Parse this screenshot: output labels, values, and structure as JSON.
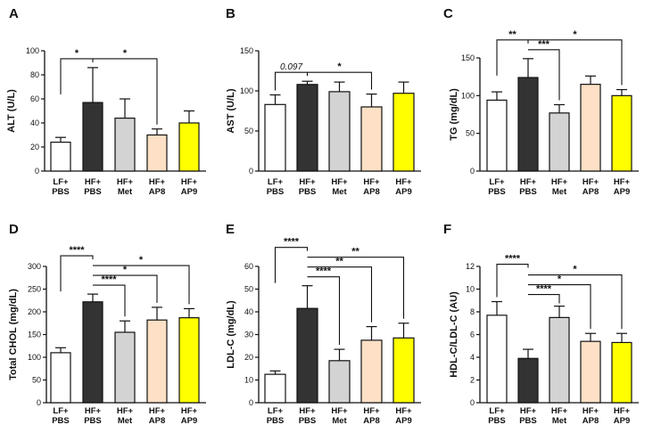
{
  "chart_data": [
    {
      "panel": "A",
      "type": "bar",
      "ylabel": "ALT (U/L)",
      "ylim": [
        0,
        100
      ],
      "yticks": [
        0,
        20,
        40,
        60,
        80,
        100
      ],
      "categories": [
        [
          "LF+",
          "PBS"
        ],
        [
          "HF+",
          "PBS"
        ],
        [
          "HF+",
          "Met"
        ],
        [
          "HF+",
          "AP8"
        ],
        [
          "HF+",
          "AP9"
        ]
      ],
      "colors": [
        "#ffffff",
        "#333333",
        "#d3d3d3",
        "#fde0c5",
        "#ffff00"
      ],
      "values": [
        24,
        57,
        44,
        30,
        40
      ],
      "errors": [
        4,
        29,
        16,
        5,
        10
      ],
      "comparisons": [
        {
          "from": 0,
          "to": 1,
          "label": "*",
          "level": 0
        },
        {
          "from": 1,
          "to": 3,
          "label": "*",
          "level": 0
        }
      ]
    },
    {
      "panel": "B",
      "type": "bar",
      "ylabel": "AST (U/L)",
      "ylim": [
        0,
        150
      ],
      "yticks": [
        0,
        50,
        100,
        150
      ],
      "categories": [
        [
          "LF+",
          "PBS"
        ],
        [
          "HF+",
          "PBS"
        ],
        [
          "HF+",
          "Met"
        ],
        [
          "HF+",
          "AP8"
        ],
        [
          "HF+",
          "AP9"
        ]
      ],
      "colors": [
        "#ffffff",
        "#333333",
        "#d3d3d3",
        "#fde0c5",
        "#ffff00"
      ],
      "values": [
        83,
        108,
        99,
        80,
        97
      ],
      "errors": [
        12,
        4,
        12,
        16,
        14
      ],
      "comparisons": [
        {
          "from": 0,
          "to": 1,
          "label": "0.097",
          "level": 0,
          "italic": true
        },
        {
          "from": 1,
          "to": 3,
          "label": "*",
          "level": 0
        }
      ]
    },
    {
      "panel": "C",
      "type": "bar",
      "ylabel": "TG (mg/dL)",
      "ylim": [
        0,
        150
      ],
      "yticks": [
        0,
        50,
        100,
        150
      ],
      "categories": [
        [
          "LF+",
          "PBS"
        ],
        [
          "HF+",
          "PBS"
        ],
        [
          "HF+",
          "Met"
        ],
        [
          "HF+",
          "AP8"
        ],
        [
          "HF+",
          "AP9"
        ]
      ],
      "colors": [
        "#ffffff",
        "#333333",
        "#d3d3d3",
        "#fde0c5",
        "#ffff00"
      ],
      "values": [
        94,
        124,
        77,
        115,
        100
      ],
      "errors": [
        11,
        25,
        11,
        11,
        8
      ],
      "comparisons": [
        {
          "from": 0,
          "to": 1,
          "label": "**",
          "level": 1
        },
        {
          "from": 1,
          "to": 2,
          "label": "***",
          "level": 0
        },
        {
          "from": 1,
          "to": 4,
          "label": "*",
          "level": 1
        }
      ]
    },
    {
      "panel": "D",
      "type": "bar",
      "ylabel": "Total CHOL (mg/dL)",
      "ylim": [
        0,
        300
      ],
      "yticks": [
        0,
        50,
        100,
        150,
        200,
        250,
        300
      ],
      "categories": [
        [
          "LF+",
          "PBS"
        ],
        [
          "HF+",
          "PBS"
        ],
        [
          "HF+",
          "Met"
        ],
        [
          "HF+",
          "AP8"
        ],
        [
          "HF+",
          "AP9"
        ]
      ],
      "colors": [
        "#ffffff",
        "#333333",
        "#d3d3d3",
        "#fde0c5",
        "#ffff00"
      ],
      "values": [
        110,
        222,
        155,
        182,
        187
      ],
      "errors": [
        11,
        17,
        25,
        28,
        20
      ],
      "comparisons": [
        {
          "from": 0,
          "to": 1,
          "label": "****",
          "level": 3
        },
        {
          "from": 1,
          "to": 2,
          "label": "****",
          "level": 0
        },
        {
          "from": 1,
          "to": 3,
          "label": "*",
          "level": 1
        },
        {
          "from": 1,
          "to": 4,
          "label": "*",
          "level": 2
        }
      ]
    },
    {
      "panel": "E",
      "type": "bar",
      "ylabel": "LDL-C (mg/dL)",
      "ylim": [
        0,
        60
      ],
      "yticks": [
        0,
        10,
        20,
        30,
        40,
        50,
        60
      ],
      "categories": [
        [
          "LF+",
          "PBS"
        ],
        [
          "HF+",
          "PBS"
        ],
        [
          "HF+",
          "Met"
        ],
        [
          "HF+",
          "AP8"
        ],
        [
          "HF+",
          "AP9"
        ]
      ],
      "colors": [
        "#ffffff",
        "#333333",
        "#d3d3d3",
        "#fde0c5",
        "#ffff00"
      ],
      "values": [
        12.5,
        41.5,
        18.5,
        27.5,
        28.5
      ],
      "errors": [
        1.5,
        10,
        5,
        6,
        6.5
      ],
      "comparisons": [
        {
          "from": 0,
          "to": 1,
          "label": "****",
          "level": 3
        },
        {
          "from": 1,
          "to": 2,
          "label": "****",
          "level": 0
        },
        {
          "from": 1,
          "to": 3,
          "label": "**",
          "level": 1
        },
        {
          "from": 1,
          "to": 4,
          "label": "**",
          "level": 2
        }
      ]
    },
    {
      "panel": "F",
      "type": "bar",
      "ylabel": "HDL-C/LDL-C (AU)",
      "ylim": [
        0,
        12
      ],
      "yticks": [
        0,
        2,
        4,
        6,
        8,
        10,
        12
      ],
      "categories": [
        [
          "LF+",
          "PBS"
        ],
        [
          "HF+",
          "PBS"
        ],
        [
          "HF+",
          "Met"
        ],
        [
          "HF+",
          "AP8"
        ],
        [
          "HF+",
          "AP9"
        ]
      ],
      "colors": [
        "#ffffff",
        "#333333",
        "#d3d3d3",
        "#fde0c5",
        "#ffff00"
      ],
      "values": [
        7.7,
        3.9,
        7.5,
        5.4,
        5.3
      ],
      "errors": [
        1.2,
        0.8,
        1.0,
        0.7,
        0.8
      ],
      "comparisons": [
        {
          "from": 0,
          "to": 1,
          "label": "****",
          "level": 3
        },
        {
          "from": 1,
          "to": 2,
          "label": "****",
          "level": 0
        },
        {
          "from": 1,
          "to": 3,
          "label": "*",
          "level": 1
        },
        {
          "from": 1,
          "to": 4,
          "label": "*",
          "level": 2
        }
      ]
    }
  ]
}
